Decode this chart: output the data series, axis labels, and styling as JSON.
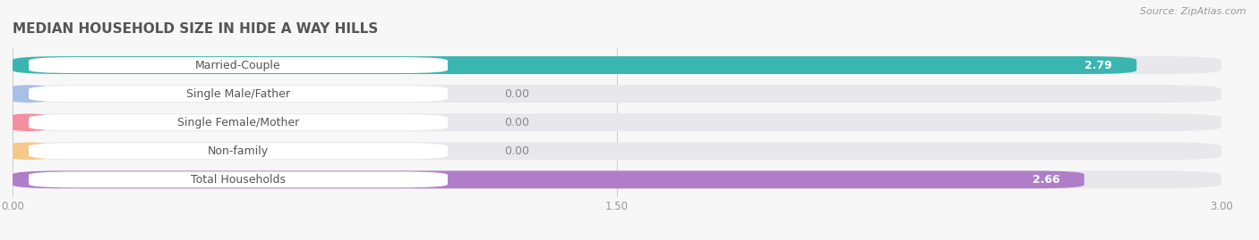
{
  "title": "MEDIAN HOUSEHOLD SIZE IN HIDE A WAY HILLS",
  "source": "Source: ZipAtlas.com",
  "categories": [
    "Married-Couple",
    "Single Male/Father",
    "Single Female/Mother",
    "Non-family",
    "Total Households"
  ],
  "values": [
    2.79,
    0.0,
    0.0,
    0.0,
    2.66
  ],
  "bar_colors": [
    "#3ab5b0",
    "#a8bfe8",
    "#f48fa0",
    "#f5c98a",
    "#b07ec8"
  ],
  "xlim": [
    0,
    3.0
  ],
  "xticks": [
    0.0,
    1.5,
    3.0
  ],
  "bar_height": 0.62,
  "track_color": "#e8e8ec",
  "bg_color": "#f7f7f7",
  "title_fontsize": 11,
  "label_fontsize": 9,
  "value_fontsize": 9,
  "source_fontsize": 8
}
